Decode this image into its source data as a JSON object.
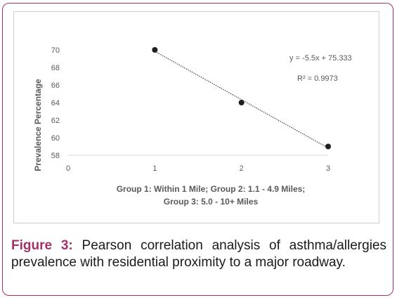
{
  "chart_data": {
    "type": "scatter",
    "title": "",
    "x": [
      1,
      2,
      3
    ],
    "y": [
      70,
      64,
      59
    ],
    "xlim": [
      0,
      3
    ],
    "ylim": [
      58,
      70
    ],
    "x_ticks": [
      "0",
      "1",
      "2",
      "3"
    ],
    "y_ticks": [
      "58",
      "60",
      "62",
      "64",
      "66",
      "68",
      "70"
    ],
    "xlabel_lines": [
      "Group 1: Within 1 Mile; Group 2: 1.1 - 4.9 Miles;",
      "Group 3: 5.0 - 10+ Miles"
    ],
    "ylabel": "Prevalence Percentage",
    "trendline": {
      "slope": -5.5,
      "intercept": 75.333,
      "style": "dotted"
    },
    "equation": "y = -5.5x + 75.333",
    "r_squared": "R² = 0.9973",
    "grid": false,
    "legend": "none",
    "point_color": "#1f1f1f"
  },
  "caption": {
    "label": "Figure 3:",
    "text": " Pearson correlation analysis of asthma/allergies prevalence with residential proximity to a major roadway."
  },
  "colors": {
    "accent": "#a5306a",
    "axis": "#d9d9d9",
    "text": "#595959"
  }
}
